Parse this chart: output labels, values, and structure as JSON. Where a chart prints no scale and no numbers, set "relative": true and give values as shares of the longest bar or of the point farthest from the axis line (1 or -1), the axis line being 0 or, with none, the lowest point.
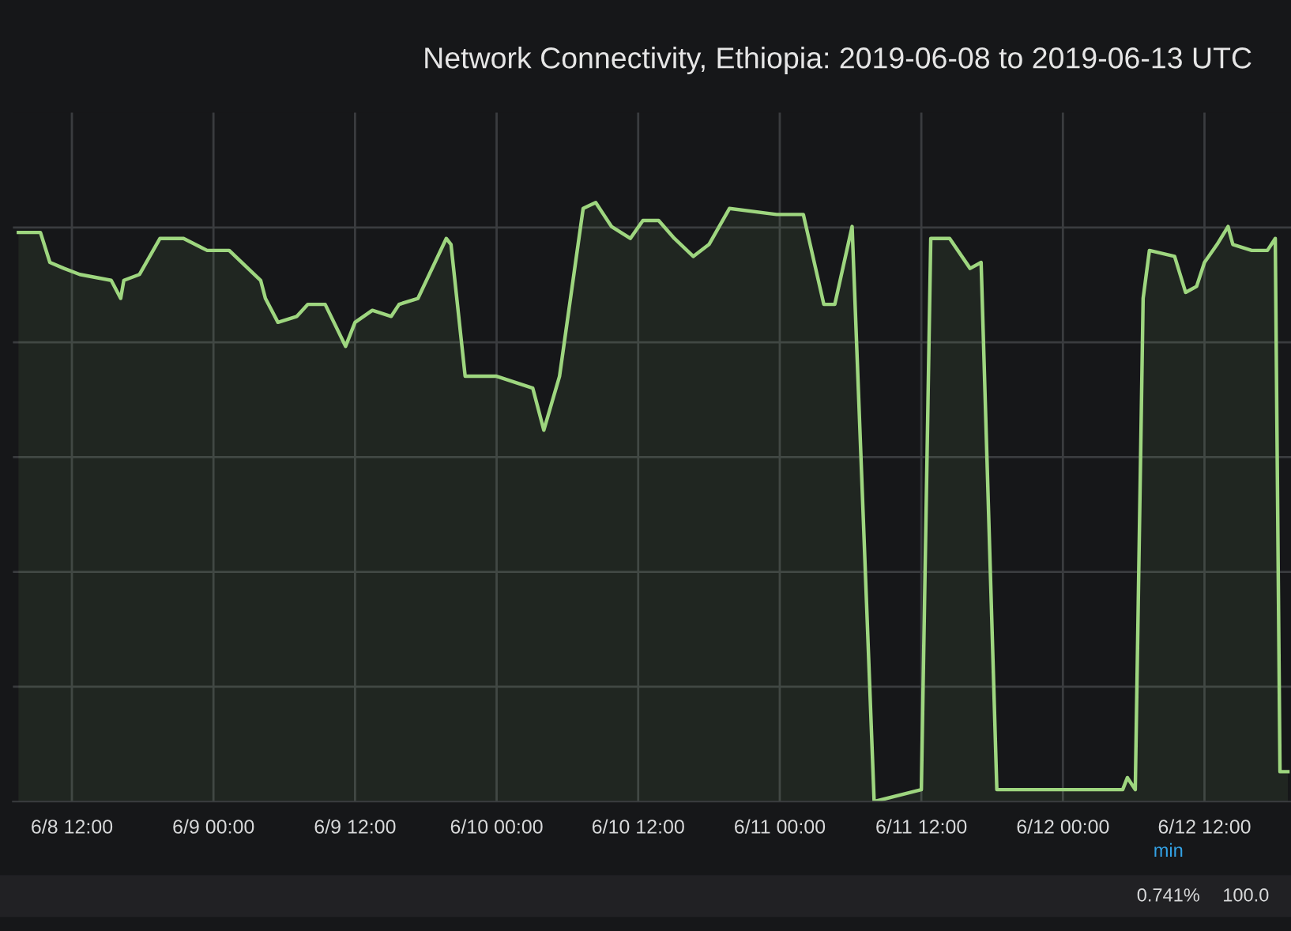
{
  "chart_data": {
    "type": "area",
    "title": "Network Connectivity, Ethiopia: 2019-06-08 to 2019-06-13 UTC",
    "relative": true,
    "grid": true,
    "xlim": [
      "2019-06-08T07:00",
      "2019-06-12T19:20"
    ],
    "xticks": [
      {
        "value": "2019-06-08T12:00",
        "label": "6/8 12:00"
      },
      {
        "value": "2019-06-09T00:00",
        "label": "6/9 00:00"
      },
      {
        "value": "2019-06-09T12:00",
        "label": "6/9 12:00"
      },
      {
        "value": "2019-06-10T00:00",
        "label": "6/10 00:00"
      },
      {
        "value": "2019-06-10T12:00",
        "label": "6/10 12:00"
      },
      {
        "value": "2019-06-11T00:00",
        "label": "6/11 00:00"
      },
      {
        "value": "2019-06-11T12:00",
        "label": "6/11 12:00"
      },
      {
        "value": "2019-06-12T00:00",
        "label": "6/12 00:00"
      },
      {
        "value": "2019-06-12T12:00",
        "label": "6/12 12:00"
      }
    ],
    "x": [
      "2019-06-08T07:28",
      "2019-06-08T09:20",
      "2019-06-08T10:08",
      "2019-06-08T11:20",
      "2019-06-08T12:40",
      "2019-06-08T15:20",
      "2019-06-08T16:08",
      "2019-06-08T16:24",
      "2019-06-08T17:44",
      "2019-06-08T19:28",
      "2019-06-08T21:28",
      "2019-06-08T23:28",
      "2019-06-09T01:20",
      "2019-06-09T04:00",
      "2019-06-09T04:24",
      "2019-06-09T05:28",
      "2019-06-09T07:04",
      "2019-06-09T08:00",
      "2019-06-09T09:28",
      "2019-06-09T11:12",
      "2019-06-09T12:00",
      "2019-06-09T13:28",
      "2019-06-09T15:04",
      "2019-06-09T15:44",
      "2019-06-09T17:20",
      "2019-06-09T19:44",
      "2019-06-09T20:08",
      "2019-06-09T21:20",
      "2019-06-10T00:00",
      "2019-06-10T03:04",
      "2019-06-10T04:00",
      "2019-06-10T05:20",
      "2019-06-10T07:20",
      "2019-06-10T08:24",
      "2019-06-10T09:44",
      "2019-06-10T11:20",
      "2019-06-10T12:24",
      "2019-06-10T13:44",
      "2019-06-10T15:04",
      "2019-06-10T16:40",
      "2019-06-10T18:00",
      "2019-06-10T19:44",
      "2019-06-10T23:44",
      "2019-06-11T02:00",
      "2019-06-11T03:44",
      "2019-06-11T04:40",
      "2019-06-11T06:08",
      "2019-06-11T08:00",
      "2019-06-11T12:00",
      "2019-06-11T12:48",
      "2019-06-11T14:24",
      "2019-06-11T16:08",
      "2019-06-11T17:04",
      "2019-06-11T18:24",
      "2019-06-12T05:04",
      "2019-06-12T05:28",
      "2019-06-12T06:08",
      "2019-06-12T06:48",
      "2019-06-12T07:20",
      "2019-06-12T09:28",
      "2019-06-12T10:24",
      "2019-06-12T11:20",
      "2019-06-12T12:00",
      "2019-06-12T13:04",
      "2019-06-12T14:00",
      "2019-06-12T14:24",
      "2019-06-12T16:00",
      "2019-06-12T17:20",
      "2019-06-12T18:00",
      "2019-06-12T18:24",
      "2019-06-12T19:04"
    ],
    "series": [
      {
        "color": "#9ed67f",
        "values": [
          0.95,
          0.95,
          0.9,
          0.89,
          0.88,
          0.87,
          0.84,
          0.87,
          0.88,
          0.94,
          0.94,
          0.92,
          0.92,
          0.87,
          0.84,
          0.8,
          0.81,
          0.83,
          0.83,
          0.76,
          0.8,
          0.82,
          0.81,
          0.83,
          0.84,
          0.94,
          0.93,
          0.71,
          0.71,
          0.69,
          0.62,
          0.71,
          0.99,
          1.0,
          0.96,
          0.94,
          0.97,
          0.97,
          0.94,
          0.91,
          0.93,
          0.99,
          0.98,
          0.98,
          0.83,
          0.83,
          0.96,
          0,
          0.02,
          0.94,
          0.94,
          0.89,
          0.9,
          0.02,
          0.02,
          0.04,
          0.02,
          0.84,
          0.92,
          0.91,
          0.85,
          0.86,
          0.9,
          0.93,
          0.96,
          0.93,
          0.92,
          0.92,
          0.94,
          0.05,
          0.05
        ]
      }
    ],
    "annotations": [
      "min",
      "0.741%",
      "100.0"
    ]
  }
}
